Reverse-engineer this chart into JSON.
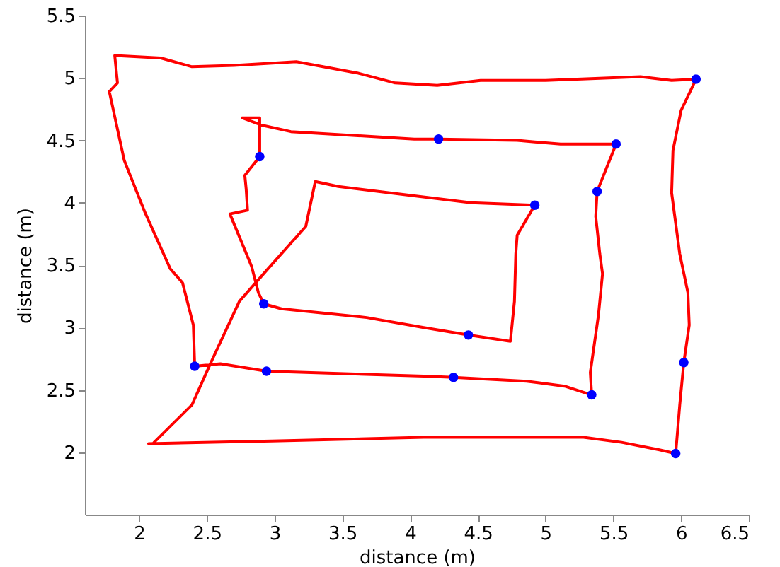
{
  "chart_data": {
    "type": "line",
    "xlabel": "distance (m)",
    "ylabel": "distance (m)",
    "xlim": [
      1.6,
      6.5
    ],
    "xticks": [
      2,
      2.5,
      3,
      3.5,
      4,
      4.5,
      5,
      5.5,
      6,
      6.5
    ],
    "ylim": [
      1.5,
      5.5
    ],
    "yticks": [
      2,
      2.5,
      3,
      3.5,
      4,
      4.5,
      5,
      5.5
    ],
    "grid": false,
    "series": [
      {
        "color": "#ff0000",
        "line_style": "solid",
        "marker": "none",
        "x": [
          2.07,
          2.98,
          4.1,
          5.28,
          5.56,
          5.84,
          5.96,
          5.99,
          6.02,
          6.06,
          6.05,
          5.99,
          5.93,
          5.94,
          6.0,
          6.11,
          5.93,
          5.7,
          5.0,
          4.52,
          4.2,
          3.89,
          3.61,
          3.16,
          2.7,
          2.39,
          2.16,
          1.82,
          1.84,
          1.78,
          1.89,
          2.04,
          2.23,
          2.32,
          2.4,
          2.41,
          2.6,
          2.94,
          4.1,
          4.32,
          4.86,
          5.14,
          5.34,
          5.33,
          5.39,
          5.42,
          5.4,
          5.37,
          5.38,
          5.52,
          5.11,
          4.79,
          4.21,
          4.03,
          3.12,
          2.91,
          2.76,
          2.89,
          2.89,
          2.78,
          2.79,
          2.8,
          2.67,
          2.83,
          2.88,
          2.92,
          3.05,
          3.68,
          4.1,
          4.43,
          4.74,
          4.77,
          4.78,
          4.79,
          4.92,
          4.45,
          4.0,
          3.47,
          3.3,
          3.23,
          2.95,
          2.74,
          2.53,
          2.39,
          2.11
        ],
        "values": [
          2.07,
          2.09,
          2.12,
          2.12,
          2.08,
          2.02,
          1.99,
          2.38,
          2.72,
          3.02,
          3.28,
          3.59,
          4.08,
          4.42,
          4.74,
          4.99,
          4.98,
          5.01,
          4.98,
          4.98,
          4.94,
          4.96,
          5.04,
          5.13,
          5.1,
          5.09,
          5.16,
          5.18,
          4.96,
          4.89,
          4.34,
          3.93,
          3.47,
          3.36,
          3.02,
          2.69,
          2.71,
          2.65,
          2.61,
          2.6,
          2.57,
          2.53,
          2.46,
          2.64,
          3.1,
          3.43,
          3.59,
          3.89,
          4.09,
          4.47,
          4.47,
          4.5,
          4.51,
          4.51,
          4.57,
          4.62,
          4.68,
          4.68,
          4.37,
          4.22,
          4.11,
          3.94,
          3.91,
          3.49,
          3.28,
          3.19,
          3.15,
          3.08,
          3.0,
          2.94,
          2.89,
          3.21,
          3.59,
          3.74,
          3.98,
          4.0,
          4.06,
          4.13,
          4.17,
          3.81,
          3.47,
          3.21,
          2.72,
          2.38,
          2.08
        ]
      },
      {
        "type": "scatter",
        "color": "#0000ff",
        "marker": "circle",
        "x": [
          5.96,
          6.02,
          6.11,
          2.41,
          2.94,
          4.32,
          5.34,
          5.38,
          5.52,
          4.21,
          2.89,
          2.92,
          4.43,
          4.92
        ],
        "values": [
          1.99,
          2.72,
          4.99,
          2.69,
          2.65,
          2.6,
          2.46,
          4.09,
          4.47,
          4.51,
          4.37,
          3.19,
          2.94,
          3.98
        ]
      }
    ]
  }
}
